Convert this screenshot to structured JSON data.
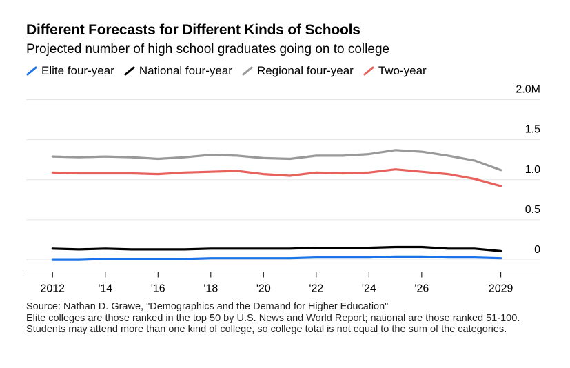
{
  "title": "Different Forecasts for Different Kinds of Schools",
  "subtitle": "Projected number of high school graduates going on to college",
  "source": "Source: Nathan D. Grawe, \"Demographics and the Demand for Higher Education\"",
  "note": "Elite colleges are those ranked in the top 50 by U.S. News and World Report; national are those ranked 51-100. Students may attend more than one kind of college, so college total is not equal to the sum of the categories.",
  "colors": {
    "elite": "#1a73e8",
    "national": "#000000",
    "regional": "#999999",
    "two_year": "#e8625d",
    "grid": "#e6e6e6"
  },
  "chart_data": {
    "type": "line",
    "title": "Different Forecasts for Different Kinds of Schools",
    "subtitle": "Projected number of high school graduates going on to college",
    "x": [
      2012,
      2013,
      2014,
      2015,
      2016,
      2017,
      2018,
      2019,
      2020,
      2021,
      2022,
      2023,
      2024,
      2025,
      2026,
      2027,
      2028,
      2029
    ],
    "x_tick_values": [
      2012,
      2014,
      2016,
      2018,
      2020,
      2022,
      2024,
      2026,
      2029
    ],
    "x_tick_labels": [
      "2012",
      "'14",
      "'16",
      "'18",
      "'20",
      "'22",
      "'24",
      "'26",
      "2029"
    ],
    "xlim": [
      2011,
      2030.5
    ],
    "ylim": [
      -0.15,
      2.0
    ],
    "y_ticks": [
      0,
      0.5,
      1.0,
      1.5,
      2.0
    ],
    "y_tick_labels": [
      "0",
      "0.5",
      "1.0",
      "1.5",
      "2.0M"
    ],
    "grid": true,
    "series": [
      {
        "name": "Elite four-year",
        "color": "#1a73e8",
        "values": [
          0.0,
          0.0,
          0.01,
          0.01,
          0.01,
          0.01,
          0.02,
          0.02,
          0.02,
          0.02,
          0.03,
          0.03,
          0.03,
          0.04,
          0.04,
          0.03,
          0.03,
          0.02
        ]
      },
      {
        "name": "National four-year",
        "color": "#000000",
        "values": [
          0.14,
          0.13,
          0.14,
          0.13,
          0.13,
          0.13,
          0.14,
          0.14,
          0.14,
          0.14,
          0.15,
          0.15,
          0.15,
          0.16,
          0.16,
          0.14,
          0.14,
          0.11
        ]
      },
      {
        "name": "Regional four-year",
        "color": "#999999",
        "values": [
          1.29,
          1.28,
          1.29,
          1.28,
          1.26,
          1.28,
          1.31,
          1.3,
          1.27,
          1.26,
          1.3,
          1.3,
          1.32,
          1.37,
          1.35,
          1.3,
          1.24,
          1.12
        ]
      },
      {
        "name": "Two-year",
        "color": "#e8625d",
        "values": [
          1.09,
          1.08,
          1.08,
          1.08,
          1.07,
          1.09,
          1.1,
          1.11,
          1.07,
          1.05,
          1.09,
          1.08,
          1.09,
          1.13,
          1.1,
          1.07,
          1.01,
          0.92
        ]
      }
    ]
  }
}
